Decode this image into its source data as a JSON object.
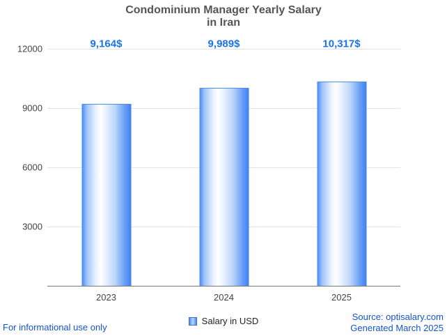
{
  "chart_data": {
    "type": "bar",
    "title": "Condominium Manager Yearly Salary in Iran",
    "title_lines": [
      "Condominium Manager Yearly Salary",
      "in Iran"
    ],
    "categories": [
      "2023",
      "2024",
      "2025"
    ],
    "values": [
      9164,
      9989,
      10317
    ],
    "value_labels": [
      "9,164$",
      "9,989$",
      "10,317$"
    ],
    "series_name": "Salary in USD",
    "legend_label": "Salary in USD",
    "xlabel": "",
    "ylabel": "",
    "ylim": [
      0,
      12000
    ],
    "yticks": [
      12000,
      9000,
      6000,
      3000
    ],
    "grid": true,
    "legend_position": "bottom",
    "bar_color": "#4387f2",
    "value_label_color": "#1a73e8"
  },
  "footer": {
    "left": "For informational use only",
    "source": "Source: optisalary.com",
    "generated": "Generated March 2025"
  }
}
